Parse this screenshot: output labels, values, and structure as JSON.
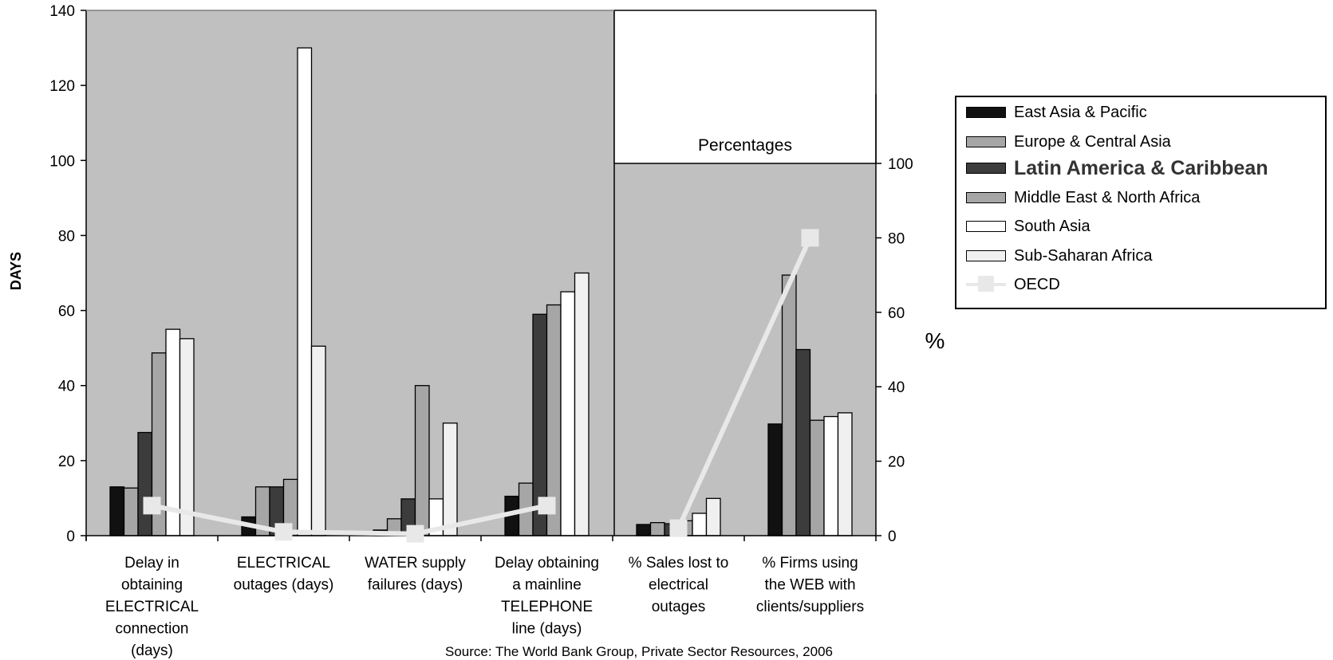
{
  "chart_data": {
    "type": "bar",
    "ylabel": "DAYS",
    "y2label": "%",
    "ylim": [
      0,
      140
    ],
    "y2lim": [
      0,
      100
    ],
    "yticks": [
      "0",
      "20",
      "40",
      "60",
      "80",
      "100",
      "120",
      "140"
    ],
    "y2ticks": [
      "0",
      "20",
      "40",
      "60",
      "80",
      "100"
    ],
    "inset_label": "Percentages",
    "categories": [
      [
        "Delay in",
        "obtaining",
        "ELECTRICAL",
        "connection",
        "(days)"
      ],
      [
        "ELECTRICAL",
        "outages (days)"
      ],
      [
        "WATER supply",
        "failures (days)"
      ],
      [
        "Delay obtaining",
        "a mainline",
        "TELEPHONE",
        "line (days)"
      ],
      [
        "% Sales lost to",
        "electrical",
        "outages"
      ],
      [
        "% Firms using",
        "the WEB with",
        "clients/suppliers"
      ]
    ],
    "series": [
      {
        "name": "East Asia & Pacific",
        "color": "#111111",
        "values": [
          13,
          5,
          1.5,
          10.5,
          3,
          30
        ]
      },
      {
        "name": "Europe & Central Asia",
        "color": "#a6a6a6",
        "values": [
          12.7,
          13,
          4.5,
          14,
          3.5,
          70
        ]
      },
      {
        "name": "Latin America & Caribbean",
        "color": "#3c3c3c",
        "values": [
          27.5,
          13,
          9.8,
          59,
          3.2,
          50
        ]
      },
      {
        "name": "Middle East & North Africa",
        "color": "#a6a6a6",
        "values": [
          48.7,
          15,
          40,
          61.5,
          4,
          31
        ]
      },
      {
        "name": "South Asia",
        "color": "#ffffff",
        "values": [
          55,
          130,
          9.8,
          65,
          6,
          32
        ]
      },
      {
        "name": "Sub-Saharan Africa",
        "color": "#f0f0f0",
        "values": [
          52.5,
          50.5,
          30,
          70,
          10,
          33
        ]
      }
    ],
    "line_series": {
      "name": "OECD",
      "color": "#e8e8e8",
      "points": [
        8,
        1,
        0.5,
        8,
        2,
        80
      ]
    },
    "legend_position": "right",
    "source": "Source: The World Bank Group, Private Sector Resources, 2006"
  }
}
